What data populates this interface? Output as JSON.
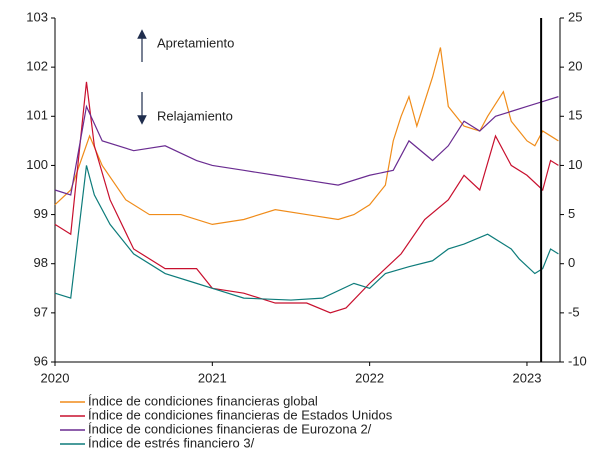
{
  "chart_data": {
    "type": "line",
    "xlim": [
      2020,
      2023.21
    ],
    "xticks": [
      2020,
      2021,
      2022,
      2023
    ],
    "ylim": [
      96,
      103
    ],
    "yticks": [
      96,
      97,
      98,
      99,
      100,
      101,
      102,
      103
    ],
    "y2lim": [
      -10,
      25
    ],
    "y2ticks": [
      -10,
      -5,
      0,
      5,
      10,
      15,
      20,
      25
    ],
    "annotations": [
      "Apretamiento",
      "Relajamiento"
    ],
    "vline": 2023.09,
    "series": [
      {
        "name": "Índice de condiciones financieras global",
        "color": "#f08c1a",
        "x": [
          2020,
          2020.1,
          2020.22,
          2020.3,
          2020.45,
          2020.6,
          2020.8,
          2021.0,
          2021.2,
          2021.4,
          2021.6,
          2021.8,
          2021.9,
          2022.0,
          2022.1,
          2022.15,
          2022.2,
          2022.25,
          2022.3,
          2022.4,
          2022.45,
          2022.5,
          2022.6,
          2022.7,
          2022.75,
          2022.85,
          2022.9,
          2023.0,
          2023.05,
          2023.1,
          2023.15,
          2023.2
        ],
        "values": [
          99.2,
          99.5,
          100.6,
          100.0,
          99.3,
          99.0,
          99.0,
          98.8,
          98.9,
          99.1,
          99.0,
          98.9,
          99.0,
          99.2,
          99.6,
          100.5,
          101.0,
          101.4,
          100.8,
          101.8,
          102.4,
          101.2,
          100.8,
          100.7,
          101.0,
          101.5,
          100.9,
          100.5,
          100.4,
          100.7,
          100.6,
          100.5
        ]
      },
      {
        "name": "Índice de condiciones financieras de Estados Unidos",
        "color": "#c8102e",
        "x": [
          2020,
          2020.1,
          2020.2,
          2020.25,
          2020.35,
          2020.5,
          2020.7,
          2020.9,
          2021.0,
          2021.2,
          2021.4,
          2021.6,
          2021.75,
          2021.85,
          2022.0,
          2022.2,
          2022.35,
          2022.5,
          2022.6,
          2022.7,
          2022.8,
          2022.9,
          2023.0,
          2023.1,
          2023.15,
          2023.2
        ],
        "values": [
          98.8,
          98.6,
          101.7,
          100.4,
          99.3,
          98.3,
          97.9,
          97.9,
          97.5,
          97.4,
          97.2,
          97.2,
          97.0,
          97.1,
          97.6,
          98.2,
          98.9,
          99.3,
          99.8,
          99.5,
          100.6,
          100.0,
          99.8,
          99.5,
          100.1,
          100.0
        ]
      },
      {
        "name": "Índice de condiciones financieras de Eurozona 2/",
        "color": "#6a2c91",
        "x": [
          2020,
          2020.1,
          2020.2,
          2020.3,
          2020.5,
          2020.7,
          2020.9,
          2021.0,
          2021.2,
          2021.4,
          2021.6,
          2021.8,
          2022.0,
          2022.15,
          2022.25,
          2022.4,
          2022.5,
          2022.6,
          2022.7,
          2022.8,
          2022.9,
          2023.0,
          2023.1,
          2023.2
        ],
        "values": [
          99.5,
          99.4,
          101.2,
          100.5,
          100.3,
          100.4,
          100.1,
          100.0,
          99.9,
          99.8,
          99.7,
          99.6,
          99.8,
          99.9,
          100.5,
          100.1,
          100.4,
          100.9,
          100.7,
          101.0,
          101.1,
          101.2,
          101.3,
          101.4
        ]
      },
      {
        "name": "Índice de estrés financiero 3/",
        "color": "#0e7c7b",
        "axis": "y2",
        "x": [
          2020,
          2020.1,
          2020.2,
          2020.25,
          2020.35,
          2020.5,
          2020.7,
          2020.9,
          2021.0,
          2021.2,
          2021.5,
          2021.7,
          2021.9,
          2022.0,
          2022.1,
          2022.25,
          2022.4,
          2022.5,
          2022.6,
          2022.75,
          2022.9,
          2022.95,
          2023.05,
          2023.1,
          2023.15,
          2023.2
        ],
        "values": [
          -3,
          -3.5,
          10,
          7,
          4,
          1,
          -1,
          -2,
          -2.5,
          -3.5,
          -3.7,
          -3.5,
          -2,
          -2.5,
          -1,
          -0.3,
          0.3,
          1.5,
          2,
          3,
          1.5,
          0.5,
          -1,
          -0.5,
          1.5,
          1
        ]
      }
    ]
  }
}
